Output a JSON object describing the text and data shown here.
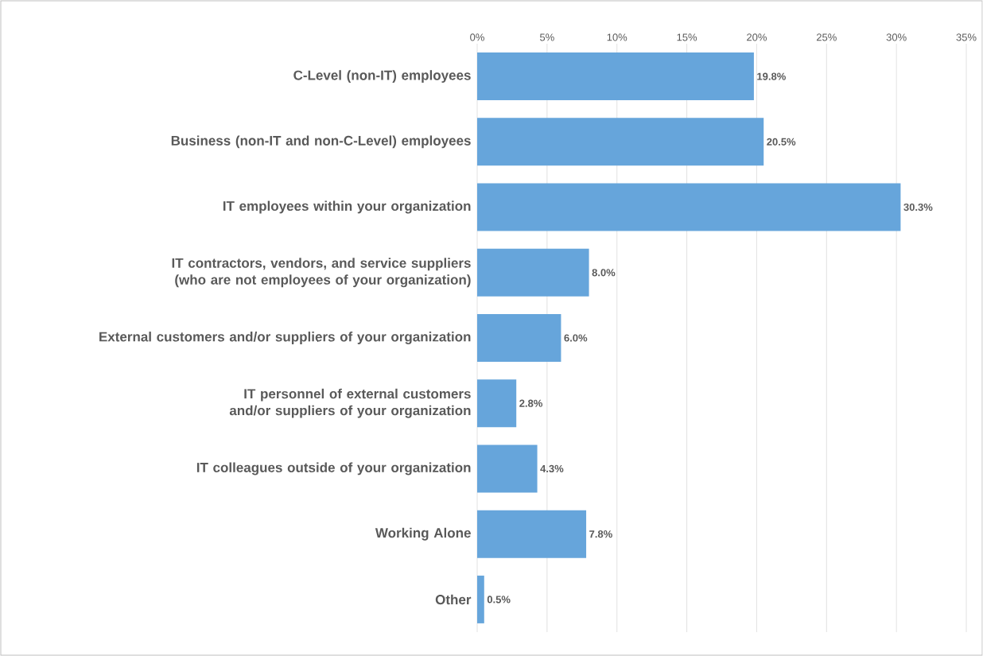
{
  "chart_data": {
    "type": "bar",
    "orientation": "horizontal",
    "categories": [
      "C-Level (non-IT) employees",
      "Business (non-IT and non-C-Level) employees",
      "IT employees within your organization",
      "IT contractors, vendors, and service suppliers (who are not employees of your organization)",
      "External customers and/or suppliers of your organization",
      "IT personnel of external customers and/or suppliers of your organization",
      "IT colleagues outside of your organization",
      "Working Alone",
      "Other"
    ],
    "values": [
      19.8,
      20.5,
      30.3,
      8.0,
      6.0,
      2.8,
      4.3,
      7.8,
      0.5
    ],
    "value_labels": [
      "19.8%",
      "20.5%",
      "30.3%",
      "8.0%",
      "6.0%",
      "2.8%",
      "4.3%",
      "7.8%",
      "0.5%"
    ],
    "color": "#66a5db",
    "xlim": [
      0,
      35
    ],
    "xticks": [
      {
        "value": 0,
        "label": "0%"
      },
      {
        "value": 5,
        "label": "5%"
      },
      {
        "value": 10,
        "label": "10%"
      },
      {
        "value": 15,
        "label": "15%"
      },
      {
        "value": 20,
        "label": "20%"
      },
      {
        "value": 25,
        "label": "25%"
      },
      {
        "value": 30,
        "label": "30%"
      },
      {
        "value": 35,
        "label": "35%"
      }
    ],
    "grid": "x"
  }
}
